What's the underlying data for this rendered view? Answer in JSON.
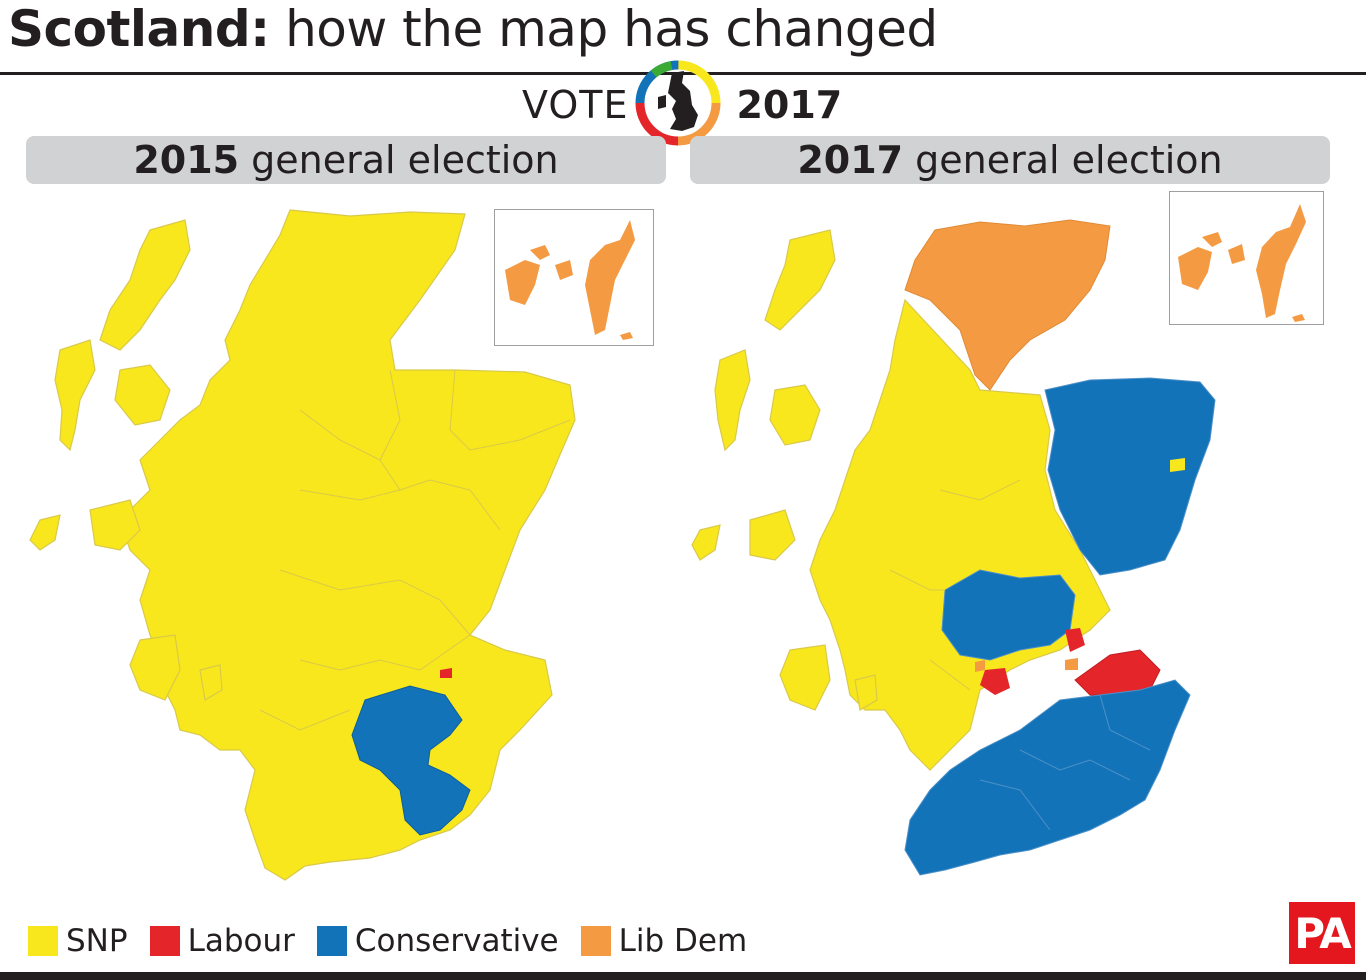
{
  "title": {
    "bold": "Scotland:",
    "rest": "how the map has changed"
  },
  "vote": {
    "word": "VOTE",
    "year": "2017"
  },
  "panels": [
    {
      "year": "2015",
      "label": "general election"
    },
    {
      "year": "2017",
      "label": "general election"
    }
  ],
  "legend": [
    {
      "label": "SNP",
      "color": "#f8e71c"
    },
    {
      "label": "Labour",
      "color": "#e4262b"
    },
    {
      "label": "Conservative",
      "color": "#1273b9"
    },
    {
      "label": "Lib Dem",
      "color": "#f39a42"
    }
  ],
  "colors": {
    "snp": "#f8e71c",
    "labour": "#e4262b",
    "conservative": "#1273b9",
    "libdem": "#f39a42",
    "border": "#d9c94a"
  },
  "credit": "PA"
}
